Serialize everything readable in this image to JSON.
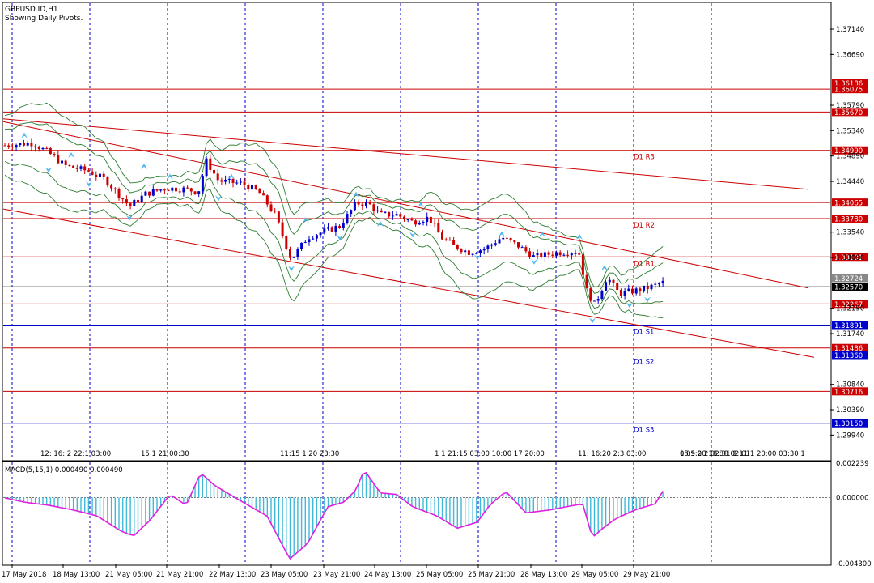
{
  "header": {
    "symbol": "GBPUSD.ID,H1",
    "subtitle": "Showing Daily Pivots."
  },
  "price_axis": {
    "ticks": [
      "1.37140",
      "1.36690",
      "1.35790",
      "1.35340",
      "1.34890",
      "1.34440",
      "1.33540",
      "1.33090",
      "1.32190",
      "1.31740",
      "1.30840",
      "1.30390",
      "1.29940"
    ],
    "range": [
      1.295,
      1.376
    ]
  },
  "levels": [
    {
      "price": 1.36186,
      "label": "1.36186",
      "color": "#cc0000"
    },
    {
      "price": 1.36075,
      "label": "1.36075",
      "color": "#cc0000"
    },
    {
      "price": 1.3567,
      "label": "1.35670",
      "color": "#cc0000"
    },
    {
      "price": 1.3499,
      "label": "1.34990",
      "color": "#cc0000",
      "pivot": "D1 R3"
    },
    {
      "price": 1.34065,
      "label": "1.34065",
      "color": "#cc0000"
    },
    {
      "price": 1.3378,
      "label": "1.33780",
      "color": "#cc0000",
      "pivot": "D1 R2"
    },
    {
      "price": 1.33101,
      "label": "1.33101",
      "color": "#cc0000",
      "pivot": "D1 R1"
    },
    {
      "price": 1.32267,
      "label": "1.32267",
      "color": "#cc0000"
    },
    {
      "price": 1.31891,
      "label": "1.31891",
      "color": "#0000cc",
      "pivot": "D1 S1"
    },
    {
      "price": 1.31486,
      "label": "1.31486",
      "color": "#cc0000"
    },
    {
      "price": 1.3136,
      "label": "1.31360",
      "color": "#0000cc",
      "pivot": "D1 S2"
    },
    {
      "price": 1.30716,
      "label": "1.30716",
      "color": "#cc0000"
    },
    {
      "price": 1.3015,
      "label": "1.30150",
      "color": "#0000cc",
      "pivot": "D1 S3"
    }
  ],
  "current": {
    "price": 1.3257,
    "label": "1.32570",
    "bid_label": "1.32724",
    "bid": 1.32724
  },
  "channels": [
    {
      "from": [
        1.3555,
        1.343
      ],
      "name": ""
    },
    {
      "from": [
        1.355,
        1.3255
      ],
      "name": ""
    },
    {
      "from": [
        1.3395,
        1.3132
      ],
      "name": ""
    }
  ],
  "time_markers": [
    "12: 16: 2 22:1 03:00",
    "15 1 21 00:30",
    "11:15 1 20 23:30",
    "1 1 21:15 03:00 10:00 17 20:00",
    "11: 16:20 2:3 03:00",
    "0 09:00 18:30 02:01",
    "15:5 2 2 02:01 1 11 1 20:00 03:30 1"
  ],
  "macd": {
    "title": "MACD(5,15,1) 0.000490 0.000490",
    "ticks": [
      "0.002239",
      "0.000000",
      "-0.004300"
    ],
    "range": [
      -0.0043,
      0.002239
    ]
  },
  "time_axis": [
    "17 May 2018",
    "18 May 13:00",
    "21 May 05:00",
    "21 May 21:00",
    "22 May 13:00",
    "23 May 05:00",
    "23 May 21:00",
    "24 May 13:00",
    "25 May 05:00",
    "25 May 21:00",
    "28 May 13:00",
    "29 May 05:00",
    "29 May 21:00"
  ],
  "colors": {
    "bull": "#0000cc",
    "bear": "#cc0000",
    "grid": "#0000cc",
    "band": "#2e7d32",
    "arrow": "#4fb8f0",
    "macd_hist": "#40b8d8",
    "macd_signal": "#e020e0"
  }
}
